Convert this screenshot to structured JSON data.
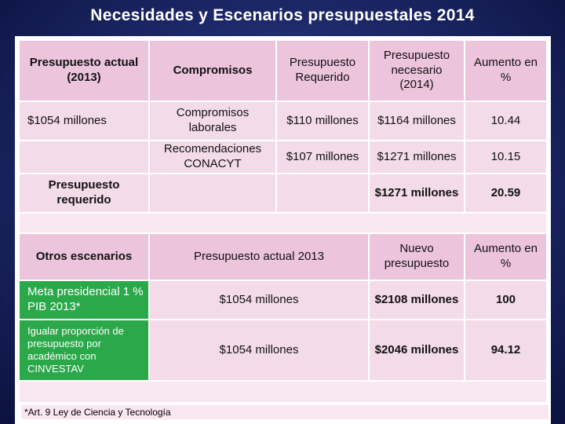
{
  "title": "Necesidades y Escenarios presupuestales 2014",
  "table1": {
    "headers": [
      "Presupuesto actual (2013)",
      "Compromisos",
      "Presupuesto Requerido",
      "Presupuesto necesario (2014)",
      "Aumento en %"
    ],
    "row1": [
      "$1054 millones",
      "Compromisos laborales",
      "$110 millones",
      "$1164 millones",
      "10.44"
    ],
    "row2": [
      "",
      "Recomendaciones CONACYT",
      "$107 millones",
      "$1271 millones",
      "10.15"
    ],
    "row3": [
      "Presupuesto requerido",
      "",
      "",
      "$1271 millones",
      "20.59"
    ]
  },
  "table2": {
    "headers": [
      "Otros escenarios",
      "Presupuesto actual 2013",
      "Nuevo presupuesto",
      "Aumento en %"
    ],
    "row1": [
      "Meta presidencial 1 % PIB 2013*",
      "$1054 millones",
      "$2108 millones",
      "100"
    ],
    "row2": [
      "Igualar proporción de presupuesto por académico con CINVESTAV",
      "$1054 millones",
      "$2046 millones",
      "94.12"
    ]
  },
  "footnote": "*Art. 9 Ley de Ciencia y Tecnología"
}
